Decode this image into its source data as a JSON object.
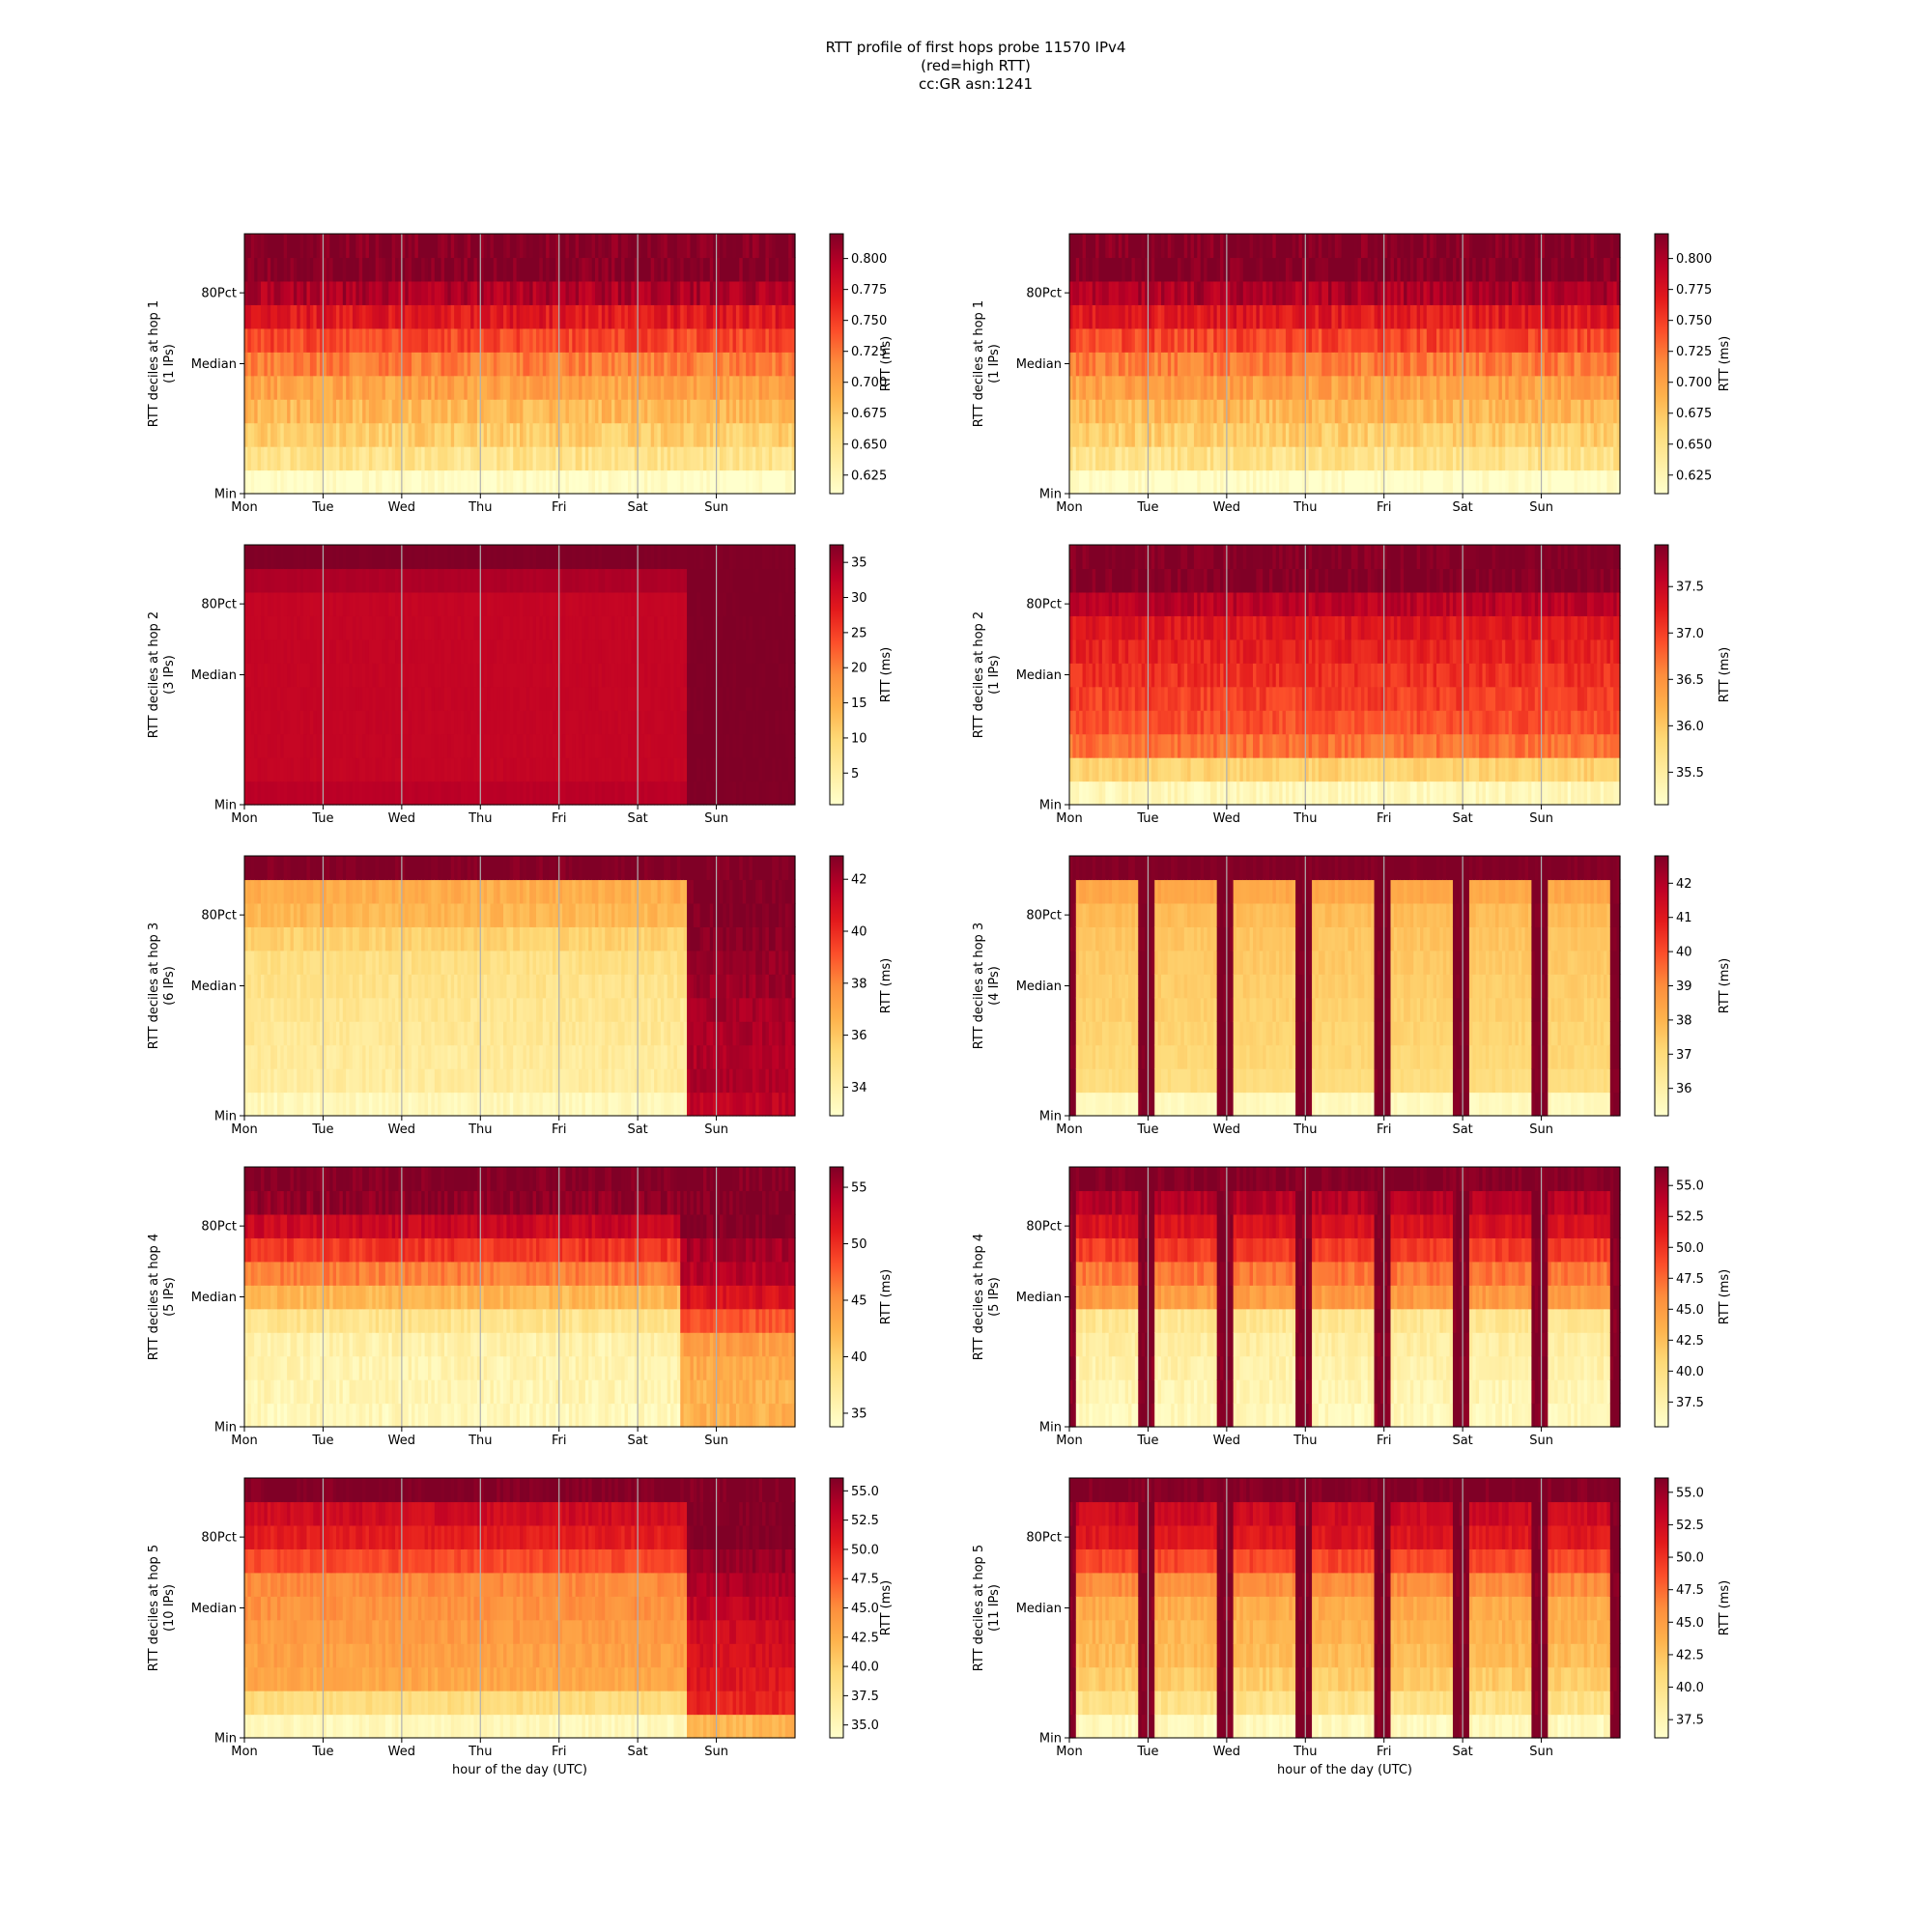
{
  "figure": {
    "title_lines": [
      "RTT profile of first hops probe 11570 IPv4",
      "(red=high RTT)",
      "cc:GR asn:1241"
    ]
  },
  "colormap": [
    "#ffffcc",
    "#ffeda0",
    "#fed976",
    "#feb24c",
    "#fd8d3c",
    "#fc4e2a",
    "#e31a1c",
    "#bd0026",
    "#800026"
  ],
  "chart_data": [
    {
      "type": "heatmap",
      "panel": "hop1-left",
      "xlabel": "",
      "ylabel": "RTT deciles at hop 1",
      "ylabel2": "(1 IPs)",
      "x_ticks": [
        "Mon",
        "Tue",
        "Wed",
        "Thu",
        "Fri",
        "Sat",
        "Sun"
      ],
      "y_ticks": [
        "Min",
        "Median",
        "80Pct"
      ],
      "colorbar_label": "RTT (ms)",
      "colorbar_ticks": [
        "0.625",
        "0.650",
        "0.675",
        "0.700",
        "0.725",
        "0.750",
        "0.775",
        "0.800"
      ],
      "vmin": 0.61,
      "vmax": 0.82,
      "rows_low_to_high": [
        0.61,
        0.65,
        0.67,
        0.685,
        0.7,
        0.72,
        0.745,
        0.77,
        0.8,
        0.82,
        0.82
      ],
      "pattern": "uniform",
      "noise": 0.015
    },
    {
      "type": "heatmap",
      "panel": "hop1-right",
      "xlabel": "",
      "ylabel": "RTT deciles at hop 1",
      "ylabel2": "(1 IPs)",
      "x_ticks": [
        "Mon",
        "Tue",
        "Wed",
        "Thu",
        "Fri",
        "Sat",
        "Sun"
      ],
      "y_ticks": [
        "Min",
        "Median",
        "80Pct"
      ],
      "colorbar_label": "RTT (ms)",
      "colorbar_ticks": [
        "0.625",
        "0.650",
        "0.675",
        "0.700",
        "0.725",
        "0.750",
        "0.775",
        "0.800"
      ],
      "vmin": 0.61,
      "vmax": 0.82,
      "rows_low_to_high": [
        0.61,
        0.65,
        0.67,
        0.685,
        0.7,
        0.72,
        0.745,
        0.77,
        0.8,
        0.82,
        0.82
      ],
      "pattern": "uniform",
      "noise": 0.015
    },
    {
      "type": "heatmap",
      "panel": "hop2-left",
      "xlabel": "",
      "ylabel": "RTT deciles at hop 2",
      "ylabel2": "(3 IPs)",
      "x_ticks": [
        "Mon",
        "Tue",
        "Wed",
        "Thu",
        "Fri",
        "Sat",
        "Sun"
      ],
      "y_ticks": [
        "Min",
        "Median",
        "80Pct"
      ],
      "colorbar_label": "RTT (ms)",
      "colorbar_ticks": [
        "5",
        "10",
        "15",
        "20",
        "25",
        "30",
        "35"
      ],
      "vmin": 0.5,
      "vmax": 37.5,
      "rows_low_to_high": [
        33,
        32,
        32,
        32,
        32,
        32,
        32,
        32,
        32,
        34,
        37.5
      ],
      "pattern": "step",
      "shift_frac": 0.8,
      "rows_after_shift": [
        37.5,
        37.5,
        37.5,
        37.5,
        37.5,
        37.5,
        37.5,
        37.5,
        37.5,
        37.5,
        37.5
      ],
      "noise": 0.3
    },
    {
      "type": "heatmap",
      "panel": "hop2-right",
      "xlabel": "",
      "ylabel": "RTT deciles at hop 2",
      "ylabel2": "(1 IPs)",
      "x_ticks": [
        "Mon",
        "Tue",
        "Wed",
        "Thu",
        "Fri",
        "Sat",
        "Sun"
      ],
      "y_ticks": [
        "Min",
        "Median",
        "80Pct"
      ],
      "colorbar_label": "RTT (ms)",
      "colorbar_ticks": [
        "35.5",
        "36.0",
        "36.5",
        "37.0",
        "37.5"
      ],
      "vmin": 35.15,
      "vmax": 37.95,
      "rows_low_to_high": [
        35.3,
        35.9,
        36.7,
        36.9,
        37.0,
        37.1,
        37.2,
        37.3,
        37.6,
        37.95,
        37.95
      ],
      "pattern": "uniform",
      "noise": 0.15
    },
    {
      "type": "heatmap",
      "panel": "hop3-left",
      "xlabel": "",
      "ylabel": "RTT deciles at hop 3",
      "ylabel2": "(6 IPs)",
      "x_ticks": [
        "Mon",
        "Tue",
        "Wed",
        "Thu",
        "Fri",
        "Sat",
        "Sun"
      ],
      "y_ticks": [
        "Min",
        "Median",
        "80Pct"
      ],
      "colorbar_label": "RTT (ms)",
      "colorbar_ticks": [
        "34",
        "36",
        "38",
        "40",
        "42"
      ],
      "vmin": 32.9,
      "vmax": 42.9,
      "rows_low_to_high": [
        33.4,
        34.2,
        34.3,
        34.5,
        34.6,
        34.8,
        35,
        35.6,
        36.5,
        36.8,
        42.9
      ],
      "pattern": "step",
      "shift_frac": 0.8,
      "rows_after_shift": [
        41.5,
        41.9,
        41.9,
        42,
        42.1,
        42.3,
        42.5,
        42.7,
        42.9,
        42.9,
        42.9
      ],
      "noise": 0.4
    },
    {
      "type": "heatmap",
      "panel": "hop3-right",
      "xlabel": "",
      "ylabel": "RTT deciles at hop 3",
      "ylabel2": "(4 IPs)",
      "x_ticks": [
        "Mon",
        "Tue",
        "Wed",
        "Thu",
        "Fri",
        "Sat",
        "Sun"
      ],
      "y_ticks": [
        "Min",
        "Median",
        "80Pct"
      ],
      "colorbar_label": "RTT (ms)",
      "colorbar_ticks": [
        "36",
        "37",
        "38",
        "39",
        "40",
        "41",
        "42"
      ],
      "vmin": 35.2,
      "vmax": 42.8,
      "rows_low_to_high": [
        35.5,
        36.9,
        37.1,
        37.2,
        37.3,
        37.4,
        37.5,
        37.6,
        37.8,
        38.3,
        42.8
      ],
      "pattern": "daily",
      "high_value": 42.8,
      "noise": 0.2
    },
    {
      "type": "heatmap",
      "panel": "hop4-left",
      "xlabel": "",
      "ylabel": "RTT deciles at hop 4",
      "ylabel2": "(5 IPs)",
      "x_ticks": [
        "Mon",
        "Tue",
        "Wed",
        "Thu",
        "Fri",
        "Sat",
        "Sun"
      ],
      "y_ticks": [
        "Min",
        "Median",
        "80Pct"
      ],
      "colorbar_label": "RTT (ms)",
      "colorbar_ticks": [
        "35",
        "40",
        "45",
        "50",
        "55"
      ],
      "vmin": 33.8,
      "vmax": 56.8,
      "rows_low_to_high": [
        35,
        35.5,
        35.7,
        36,
        38,
        42,
        46,
        49.5,
        53,
        56,
        56.8
      ],
      "pattern": "step",
      "shift_frac": 0.79,
      "rows_after_shift": [
        42.5,
        42.5,
        43,
        44,
        48,
        52,
        54,
        55,
        56.8,
        56.8,
        56.8
      ],
      "noise": 1.2
    },
    {
      "type": "heatmap",
      "panel": "hop4-right",
      "xlabel": "",
      "ylabel": "RTT deciles at hop 4",
      "ylabel2": "(5 IPs)",
      "x_ticks": [
        "Mon",
        "Tue",
        "Wed",
        "Thu",
        "Fri",
        "Sat",
        "Sun"
      ],
      "y_ticks": [
        "Min",
        "Median",
        "80Pct"
      ],
      "colorbar_label": "RTT (ms)",
      "colorbar_ticks": [
        "37.5",
        "40.0",
        "42.5",
        "45.0",
        "47.5",
        "50.0",
        "52.5",
        "55.0"
      ],
      "vmin": 35.5,
      "vmax": 56.5,
      "rows_low_to_high": [
        36.5,
        37,
        37.5,
        38,
        39,
        45,
        47,
        49.5,
        52,
        54,
        56.5
      ],
      "pattern": "daily",
      "high_value": 56.5,
      "noise": 1.0
    },
    {
      "type": "heatmap",
      "panel": "hop5-left",
      "xlabel": "hour of the day (UTC)",
      "ylabel": "RTT deciles at hop 5",
      "ylabel2": "(10 IPs)",
      "x_ticks": [
        "Mon",
        "Tue",
        "Wed",
        "Thu",
        "Fri",
        "Sat",
        "Sun"
      ],
      "y_ticks": [
        "Min",
        "Median",
        "80Pct"
      ],
      "colorbar_label": "RTT (ms)",
      "colorbar_ticks": [
        "35.0",
        "37.5",
        "40.0",
        "42.5",
        "45.0",
        "47.5",
        "50.0",
        "52.5",
        "55.0"
      ],
      "vmin": 33.9,
      "vmax": 56.1,
      "rows_low_to_high": [
        35,
        39,
        43,
        43.5,
        44,
        44.5,
        45,
        48,
        50.5,
        52,
        56.1
      ],
      "pattern": "step",
      "shift_frac": 0.8,
      "rows_after_shift": [
        42,
        50,
        51,
        51.5,
        52,
        53,
        54,
        55,
        56.1,
        56.1,
        56.1
      ],
      "noise": 0.9
    },
    {
      "type": "heatmap",
      "panel": "hop5-right",
      "xlabel": "hour of the day (UTC)",
      "ylabel": "RTT deciles at hop 5",
      "ylabel2": "(11 IPs)",
      "x_ticks": [
        "Mon",
        "Tue",
        "Wed",
        "Thu",
        "Fri",
        "Sat",
        "Sun"
      ],
      "y_ticks": [
        "Min",
        "Median",
        "80Pct"
      ],
      "colorbar_label": "RTT (ms)",
      "colorbar_ticks": [
        "37.5",
        "40.0",
        "42.5",
        "45.0",
        "47.5",
        "50.0",
        "52.5",
        "55.0"
      ],
      "vmin": 36.1,
      "vmax": 56.1,
      "rows_low_to_high": [
        37,
        40,
        42,
        43,
        43.5,
        44,
        46,
        49,
        51.5,
        52.5,
        56.1
      ],
      "pattern": "daily",
      "high_value": 56.1,
      "noise": 0.9
    }
  ]
}
